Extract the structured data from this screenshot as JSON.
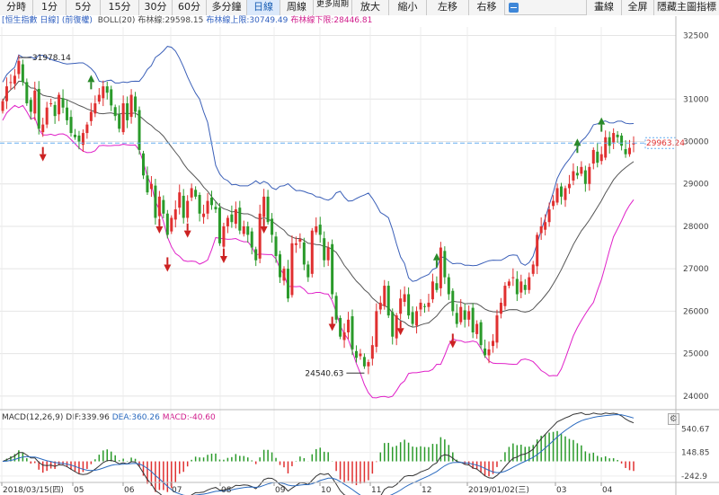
{
  "toolbar": {
    "left_buttons": [
      "分時",
      "1分",
      "5分",
      "15分",
      "30分",
      "60分",
      "多分鐘",
      "日線",
      "周線"
    ],
    "active": "日線",
    "more_button": "更多周期",
    "zoom_in": "放大",
    "zoom_out": "縮小",
    "move_left": "左移",
    "move_right": "右移",
    "draw_line": "畫線",
    "full_screen": "全屏",
    "hide_indicators": "隱藏主圖指標"
  },
  "legend": {
    "symbol": "[恒生指數 日線]",
    "adjust": "(前復權)",
    "boll_label": "BOLL(20)",
    "mid_label": "布林線:29598.15",
    "upper_label": "布林線上限:30749.49",
    "lower_label": "布林線下限:28446.81"
  },
  "macd_legend": {
    "label": "MACD(12,26,9)",
    "dif": "DIF:339.96",
    "dea": "DEA:360.26",
    "macd": "MACD:-40.60"
  },
  "price_axis": [
    "32500",
    "31000",
    "30000",
    "29000",
    "28000",
    "27000",
    "26000",
    "25000",
    "24000"
  ],
  "macd_axis": [
    "540.67",
    "148.85",
    "-242.9"
  ],
  "date_labels": [
    "2018/03/15(四)",
    "05",
    "06",
    "07",
    "08",
    "09",
    "10",
    "11",
    "12",
    "2019/01/02(三)",
    "03",
    "04"
  ],
  "annotations": {
    "high": "31978.14",
    "low": "24540.63",
    "current": "29963.24"
  },
  "colors": {
    "up": "#e03030",
    "down": "#2a9a2a",
    "mid_line": "#555555",
    "upper_band": "#3a5fb8",
    "lower_band": "#e020c8",
    "dif": "#333333",
    "dea": "#2a6abf",
    "price_line": "#66aef0",
    "current_label": "#e03030"
  },
  "icons": {
    "settings": "gear-icon",
    "collapse": "minus-icon",
    "sell_signal": "red-arrow-icon",
    "buy_signal": "green-arrow-icon"
  },
  "chart_data": {
    "type": "candlestick",
    "title": "",
    "y_range": [
      23700,
      32700
    ],
    "indicators": [
      "BOLL(20)",
      "MACD(12,26,9)"
    ],
    "last_close": 29963.24,
    "high": 31978.14,
    "low": 24540.63,
    "boll": {
      "mid": 29598.15,
      "upper": 30749.49,
      "lower": 28446.81
    },
    "macd": {
      "dif": 339.96,
      "dea": 360.26,
      "macd": -40.6,
      "axis": [
        540.67,
        148.85,
        -242.9
      ]
    },
    "month_ticks": [
      "2018/03/15(四)",
      "05",
      "06",
      "07",
      "08",
      "09",
      "10",
      "11",
      "12",
      "2019/01/02(三)",
      "03",
      "04"
    ],
    "close_path": [
      30950,
      31300,
      31400,
      31550,
      31900,
      31400,
      30900,
      30700,
      31200,
      30300,
      30400,
      30800,
      30900,
      30600,
      31100,
      30800,
      30500,
      30200,
      30100,
      30000,
      30200,
      30400,
      30700,
      30900,
      31100,
      31300,
      31150,
      30850,
      30600,
      30300,
      30900,
      30500,
      31100,
      30700,
      29800,
      29200,
      28800,
      29000,
      28200,
      28700,
      28300,
      27800,
      28200,
      28400,
      28800,
      28200,
      28600,
      28900,
      28700,
      28300,
      28300,
      28600,
      28500,
      28400,
      27600,
      28000,
      28200,
      28100,
      28400,
      27900,
      28000,
      27800,
      27500,
      27200,
      28300,
      28700,
      28100,
      27800,
      27300,
      26800,
      27000,
      26300,
      27600,
      27600,
      27700,
      27100,
      26800,
      27900,
      28000,
      27800,
      27200,
      27500,
      26400,
      25800,
      25400,
      25500,
      25800,
      25100,
      24900,
      25000,
      24700,
      24800,
      25200,
      26000,
      26200,
      26600,
      25900,
      25400,
      25900,
      26300,
      26400,
      25900,
      25700,
      26000,
      26200,
      26100,
      26200,
      26700,
      26500,
      27500,
      26800,
      26400,
      26000,
      25700,
      26100,
      25800,
      26000,
      25500,
      25700,
      25200,
      24960,
      25100,
      25300,
      25900,
      26200,
      26600,
      26700,
      26800,
      26400,
      26700,
      26500,
      26800,
      27100,
      27800,
      28000,
      28100,
      28400,
      28600,
      28900,
      28700,
      28900,
      29000,
      29300,
      29200,
      29400,
      29000,
      29400,
      29800,
      29500,
      29700,
      30100,
      29900,
      30200,
      30100,
      29900,
      29700,
      29850,
      29963
    ]
  }
}
